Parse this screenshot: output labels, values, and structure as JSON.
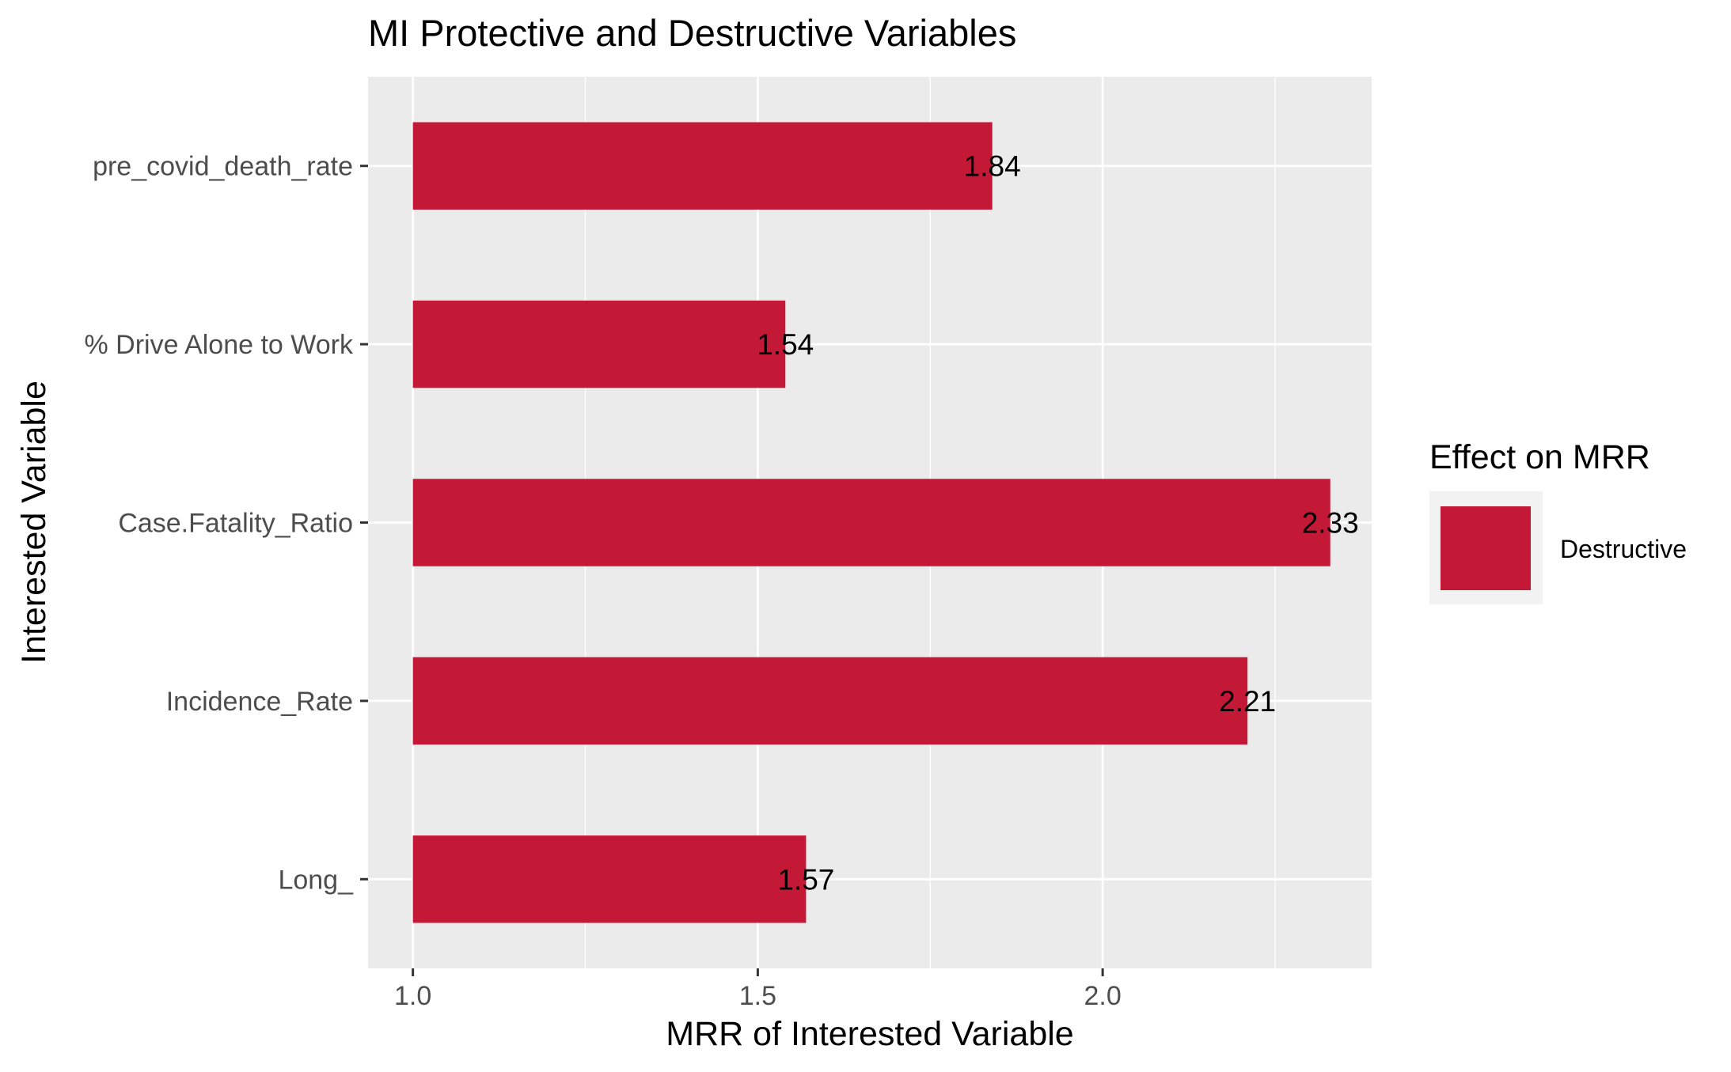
{
  "chart_data": {
    "type": "bar",
    "orientation": "horizontal",
    "title": "MI Protective and Destructive Variables",
    "xlabel": "MRR of Interested Variable",
    "ylabel": "Interested Variable",
    "categories": [
      "pre_covid_death_rate",
      "% Drive Alone to Work",
      "Case.Fatality_Ratio",
      "Incidence_Rate",
      "Long_"
    ],
    "values": [
      1.84,
      1.54,
      2.33,
      2.21,
      1.57
    ],
    "data_labels": [
      "1.84",
      "1.54",
      "2.33",
      "2.21",
      "1.57"
    ],
    "bar_color": "#C41837",
    "xlim": [
      0.935,
      2.39
    ],
    "bar_base": 1.0,
    "x_ticks": [
      1.0,
      1.5,
      2.0
    ],
    "x_tick_labels": [
      "1.0",
      "1.5",
      "2.0"
    ],
    "x_minor_gridlines": [
      1.25,
      1.75,
      2.25
    ],
    "grid": true,
    "panel_background": "#EBEBEB",
    "legend": {
      "title": "Effect on MRR",
      "entries": [
        {
          "label": "Destructive",
          "color": "#C41837"
        }
      ],
      "position": "right"
    }
  }
}
